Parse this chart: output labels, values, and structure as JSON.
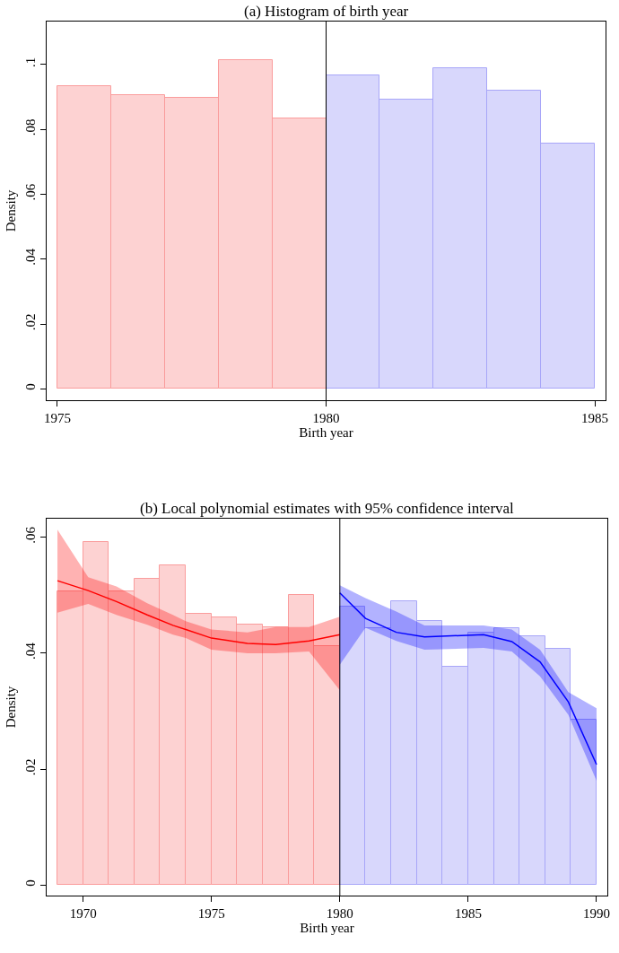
{
  "chart_data": [
    {
      "type": "histogram",
      "title": "(a) Histogram of birth year",
      "xlabel": "Birth year",
      "ylabel": "Density",
      "bins": [
        1975,
        1976,
        1977,
        1978,
        1979,
        1980,
        1981,
        1982,
        1983,
        1984,
        1985
      ],
      "values": [
        0.0933,
        0.0904,
        0.0898,
        0.1012,
        0.0832,
        0.0966,
        0.0892,
        0.0987,
        0.0918,
        0.0757
      ],
      "colors": [
        "#fa9c9c",
        "#fa9c9c",
        "#fa9c9c",
        "#fa9c9c",
        "#fa9c9c",
        "#a8a6f8",
        "#a8a6f8",
        "#a8a6f8",
        "#a8a6f8",
        "#a8a6f8"
      ],
      "xlim": [
        1974.8,
        1985.2
      ],
      "xticks": [
        1975,
        1980,
        1985
      ],
      "ylim": [
        -0.0035,
        0.1132
      ],
      "yticks": [
        0,
        {
          "value": 0.02,
          "label": ".02"
        },
        {
          "value": 0.04,
          "label": ".04"
        },
        {
          "value": 0.06,
          "label": ".06"
        },
        {
          "value": 0.08,
          "label": ".08"
        },
        {
          "value": 0.1,
          "label": ".1"
        }
      ],
      "ref_lines": [
        {
          "axis": "x",
          "value": 1980,
          "color": "#000000"
        }
      ]
    },
    {
      "type": "histogram",
      "title": "(b) Local polynomial estimates with 95% confidence interval",
      "xlabel": "Birth year",
      "ylabel": "Density",
      "series": [
        {
          "color": "#fa9c9c",
          "bins": [
            1969,
            1970,
            1971,
            1972,
            1973,
            1974,
            1975,
            1976,
            1977,
            1978,
            1979,
            1980
          ],
          "values": [
            0.0507,
            0.0592,
            0.0507,
            0.0529,
            0.0552,
            0.0468,
            0.0462,
            0.0449,
            0.0445,
            0.0501,
            0.0413
          ]
        },
        {
          "color": "#a8a6f8",
          "bins": [
            1980,
            1981,
            1982,
            1983,
            1984,
            1985,
            1986,
            1987,
            1988,
            1989,
            1990
          ],
          "values": [
            0.048,
            0.0443,
            0.049,
            0.0455,
            0.0376,
            0.0435,
            0.0443,
            0.0429,
            0.0407,
            0.0286
          ]
        },
        {
          "type": "line",
          "color": "#ff0000",
          "x": [
            1969,
            1970.2,
            1971.3,
            1972.5,
            1973.5,
            1974,
            1975,
            1976.4,
            1977.5,
            1978.8,
            1980
          ],
          "values": [
            0.0525,
            0.0508,
            0.0489,
            0.0466,
            0.0448,
            0.0441,
            0.0426,
            0.0417,
            0.0415,
            0.0421,
            0.0432
          ],
          "lower": [
            0.047,
            0.0485,
            0.0466,
            0.0449,
            0.0432,
            0.0426,
            0.0406,
            0.04,
            0.04,
            0.0403,
            0.0336
          ],
          "upper": [
            0.0613,
            0.0531,
            0.0515,
            0.0486,
            0.0466,
            0.0455,
            0.0441,
            0.0436,
            0.0445,
            0.0445,
            0.0463
          ]
        },
        {
          "type": "line",
          "color": "#0000ff",
          "x": [
            1980,
            1981,
            1982.2,
            1983.3,
            1985.6,
            1986.7,
            1987.8,
            1988.9,
            1990
          ],
          "values": [
            0.0504,
            0.046,
            0.0436,
            0.0428,
            0.0432,
            0.042,
            0.0385,
            0.0316,
            0.0208
          ],
          "lower": [
            0.038,
            0.0444,
            0.0421,
            0.0406,
            0.0409,
            0.0403,
            0.036,
            0.0294,
            0.018
          ],
          "upper": [
            0.0517,
            0.0495,
            0.0472,
            0.0448,
            0.0448,
            0.0441,
            0.0406,
            0.0333,
            0.0305
          ]
        }
      ],
      "xlim": [
        1968.58,
        1990.42
      ],
      "xticks": [
        1970,
        1975,
        1980,
        1985,
        1990
      ],
      "ylim": [
        -0.0018,
        0.0632
      ],
      "yticks": [
        0,
        {
          "value": 0.02,
          "label": ".02"
        },
        {
          "value": 0.04,
          "label": ".04"
        },
        {
          "value": 0.06,
          "label": ".06"
        }
      ],
      "ref_lines": [
        {
          "axis": "x",
          "value": 1980,
          "color": "#000000"
        }
      ],
      "marker": "none",
      "line_style": "solid"
    }
  ]
}
